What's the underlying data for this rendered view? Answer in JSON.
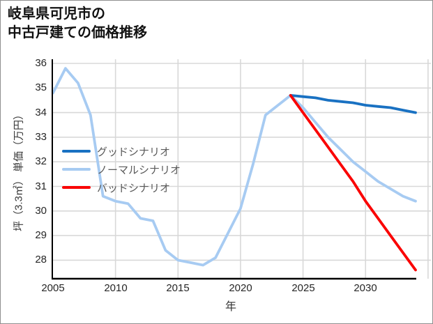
{
  "title": {
    "line1": "岐阜県可児市の",
    "line2": "中古戸建ての価格推移"
  },
  "axes": {
    "x_label": "年",
    "y_label": "坪（3.3㎡） 単価（万円）",
    "x_ticks": [
      "2005",
      "2010",
      "2015",
      "2020",
      "2025",
      "2030"
    ],
    "y_ticks": [
      "36",
      "35",
      "34",
      "33",
      "32",
      "31",
      "30",
      "29",
      "28"
    ]
  },
  "legend": [
    {
      "label": "グッドシナリオ",
      "color": "#1971c2"
    },
    {
      "label": "ノーマルシナリオ",
      "color": "#a7cbf2"
    },
    {
      "label": "バッドシナリオ",
      "color": "#fa0000"
    }
  ],
  "colors": {
    "good": "#1971c2",
    "normal": "#a7cbf2",
    "bad": "#fa0000",
    "grid": "#d8d8d8",
    "spine": "#000000"
  },
  "chart_data": {
    "type": "line",
    "title": "岐阜県可児市の中古戸建ての価格推移",
    "xlabel": "年",
    "ylabel": "坪（3.3㎡）単価（万円）",
    "x_range": [
      2005,
      2035
    ],
    "ylim": [
      27.2,
      36.2
    ],
    "grid": true,
    "legend_position": "center-left-inside",
    "x_tick_step": 5,
    "series": [
      {
        "name": "グッドシナリオ",
        "color": "#1971c2",
        "x": [
          2024,
          2025,
          2026,
          2027,
          2028,
          2029,
          2030,
          2031,
          2032,
          2033,
          2034
        ],
        "values": [
          34.7,
          34.65,
          34.6,
          34.5,
          34.45,
          34.4,
          34.3,
          34.25,
          34.2,
          34.1,
          34.0
        ]
      },
      {
        "name": "ノーマルシナリオ",
        "color": "#a7cbf2",
        "x": [
          2005,
          2006,
          2007,
          2008,
          2009,
          2010,
          2011,
          2012,
          2013,
          2014,
          2015,
          2016,
          2017,
          2018,
          2019,
          2020,
          2021,
          2022,
          2023,
          2024,
          2025,
          2026,
          2027,
          2028,
          2029,
          2030,
          2031,
          2032,
          2033,
          2034
        ],
        "values": [
          34.8,
          35.8,
          35.2,
          33.9,
          30.6,
          30.4,
          30.3,
          29.7,
          29.6,
          28.4,
          28.0,
          27.9,
          27.8,
          28.1,
          29.1,
          30.1,
          31.9,
          33.9,
          34.3,
          34.7,
          34.2,
          33.6,
          33.0,
          32.5,
          32.0,
          31.6,
          31.2,
          30.9,
          30.6,
          30.4
        ]
      },
      {
        "name": "バッドシナリオ",
        "color": "#fa0000",
        "x": [
          2024,
          2025,
          2026,
          2027,
          2028,
          2029,
          2030,
          2031,
          2032,
          2033,
          2034
        ],
        "values": [
          34.7,
          34.0,
          33.3,
          32.6,
          31.9,
          31.2,
          30.4,
          29.7,
          29.0,
          28.3,
          27.6
        ]
      }
    ]
  }
}
